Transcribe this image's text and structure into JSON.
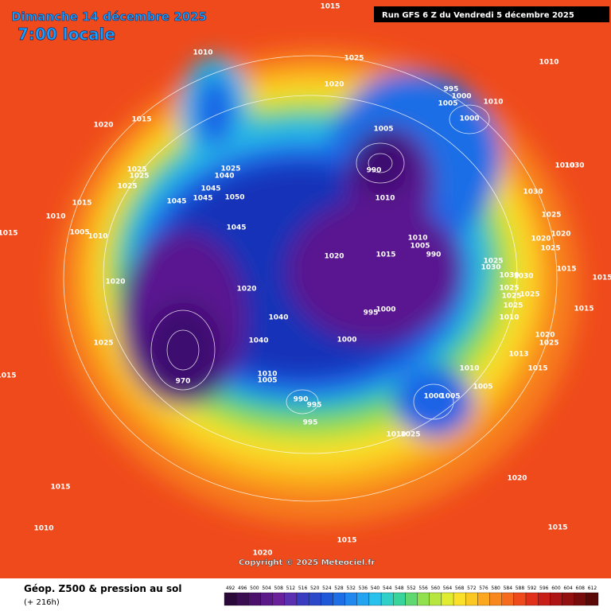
{
  "header": {
    "date": "Dimanche 14 décembre 2025",
    "time": "7:00 locale",
    "run": "Run GFS 6 Z du Vendredi 5 décembre 2025"
  },
  "map": {
    "copyright": "Copyright © 2025 Meteociel.fr",
    "pressure_labels": [
      1015,
      1010,
      1025,
      1010,
      1020,
      995,
      1000,
      1005,
      1010,
      1020,
      1015,
      1000,
      1005,
      990,
      1010,
      1030,
      1025,
      1025,
      1025,
      1040,
      1025,
      1045,
      1050,
      1045,
      1045,
      1010,
      1030,
      1015,
      1010,
      1025,
      1005,
      1010,
      1015,
      1045,
      1020,
      1020,
      1010,
      1005,
      990,
      1025,
      1020,
      1015,
      1025,
      1030,
      1015,
      1015,
      1020,
      1020,
      1030,
      1030,
      1025,
      1025,
      1025,
      1025,
      1015,
      1000,
      995,
      1010,
      1040,
      1000,
      1025,
      1040,
      1020,
      1025,
      1013,
      1015,
      1010,
      1015,
      1010,
      1005,
      1005,
      970,
      1000,
      1005,
      990,
      995,
      995,
      1010,
      1025,
      1020,
      1015,
      1010,
      1015,
      1015,
      1020
    ]
  },
  "legend": {
    "title": "Géop. Z500 & pression au sol",
    "lead": "(+ 216h)",
    "scale": [
      492,
      496,
      500,
      504,
      508,
      512,
      516,
      520,
      524,
      528,
      532,
      536,
      540,
      544,
      548,
      552,
      556,
      560,
      564,
      568,
      572,
      576,
      580,
      584,
      588,
      592,
      596,
      600,
      604,
      608,
      612
    ]
  }
}
